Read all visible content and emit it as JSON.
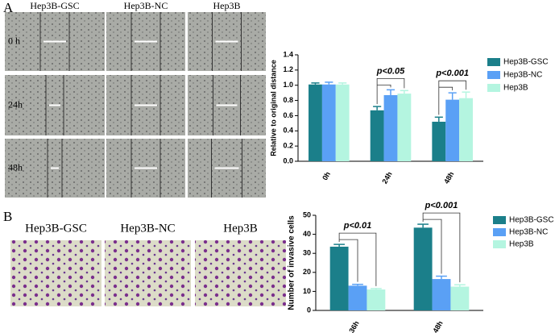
{
  "figure": {
    "panel_a": "A",
    "panel_b": "B",
    "a_headers": [
      "Hep3B-GSC",
      "Hep3B-NC",
      "Hep3B"
    ],
    "a_rows": [
      "0 h",
      "24h",
      "48h"
    ],
    "b_headers": [
      "Hep3B-GSC",
      "Hep3B-NC",
      "Hep3B"
    ]
  },
  "chart_data": [
    {
      "type": "bar",
      "ylabel": "Relative to original distance",
      "categories": [
        "0h",
        "24h",
        "48h"
      ],
      "series": [
        {
          "name": "Hep3B-GSC",
          "color": "#1b7f8a",
          "values": [
            1.01,
            0.67,
            0.52
          ],
          "errors": [
            0.02,
            0.05,
            0.06
          ]
        },
        {
          "name": "Hep3B-NC",
          "color": "#5aa0f5",
          "values": [
            1.01,
            0.87,
            0.81
          ],
          "errors": [
            0.03,
            0.07,
            0.09
          ]
        },
        {
          "name": "Hep3B",
          "color": "#b4f5e0",
          "values": [
            1.01,
            0.89,
            0.83
          ],
          "errors": [
            0.02,
            0.04,
            0.08
          ]
        }
      ],
      "annotations": [
        null,
        "p<0.05",
        "p<0.001"
      ],
      "ylim": [
        0,
        1.4
      ],
      "yticks": [
        {
          "value": 0,
          "label": "0.0"
        },
        {
          "value": 0.2,
          "label": "0.2"
        },
        {
          "value": 0.4,
          "label": "0.4"
        },
        {
          "value": 0.6,
          "label": "0.6"
        },
        {
          "value": 0.8,
          "label": "0.8"
        },
        {
          "value": 1,
          "label": "1.0"
        },
        {
          "value": 1.2,
          "label": "1.2"
        },
        {
          "value": 1.4,
          "label": "1.4"
        }
      ]
    },
    {
      "type": "bar",
      "ylabel": "Number of invasive cells",
      "categories": [
        "36h",
        "48h"
      ],
      "series": [
        {
          "name": "Hep3B-GSC",
          "color": "#1b7f8a",
          "values": [
            33.5,
            43.5
          ],
          "errors": [
            1.2,
            1.8
          ]
        },
        {
          "name": "Hep3B-NC",
          "color": "#5aa0f5",
          "values": [
            13,
            16.5
          ],
          "errors": [
            0.7,
            1.5
          ]
        },
        {
          "name": "Hep3B",
          "color": "#b4f5e0",
          "values": [
            11,
            12.5
          ],
          "errors": [
            0.5,
            1
          ]
        }
      ],
      "annotations": [
        "p<0.01",
        "p<0.001"
      ],
      "ylim": [
        0,
        50
      ],
      "yticks": [
        0,
        10,
        20,
        30,
        40,
        50
      ]
    }
  ]
}
